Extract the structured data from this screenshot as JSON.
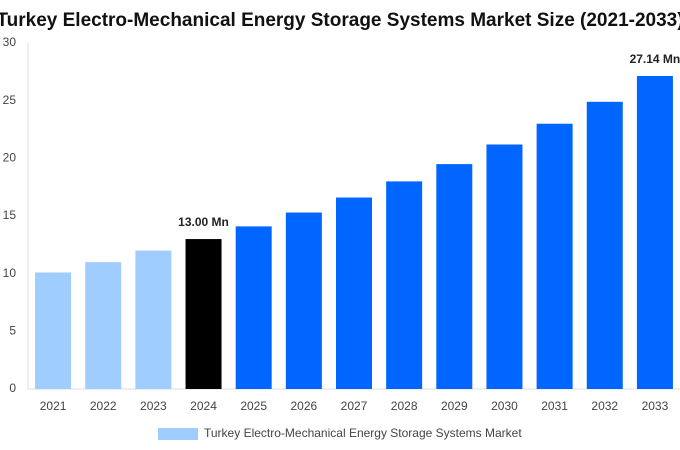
{
  "chart_data": {
    "type": "bar",
    "title": "Turkey Electro-Mechanical Energy Storage Systems Market Size (2021-2033)",
    "categories": [
      "2021",
      "2022",
      "2023",
      "2024",
      "2025",
      "2026",
      "2027",
      "2028",
      "2029",
      "2030",
      "2031",
      "2032",
      "2033"
    ],
    "series": [
      {
        "name": "Turkey Electro-Mechanical Energy Storage Systems Market",
        "color": "#a0cdff",
        "colors": [
          "#a0cdff",
          "#a0cdff",
          "#a0cdff",
          "#000000",
          "#0066ff",
          "#0066ff",
          "#0066ff",
          "#0066ff",
          "#0066ff",
          "#0066ff",
          "#0066ff",
          "#0066ff",
          "#0066ff"
        ],
        "values": [
          10.1,
          11.0,
          12.0,
          13.0,
          14.1,
          15.3,
          16.6,
          18.0,
          19.5,
          21.2,
          23.0,
          24.9,
          27.14
        ],
        "value_labels": [
          null,
          null,
          null,
          "13.00 Mn",
          null,
          null,
          null,
          null,
          null,
          null,
          null,
          null,
          "27.14 Mn"
        ]
      }
    ],
    "ylim": [
      0,
      30
    ],
    "yticks": [
      0,
      5,
      10,
      15,
      20,
      25,
      30
    ],
    "grid": false
  }
}
